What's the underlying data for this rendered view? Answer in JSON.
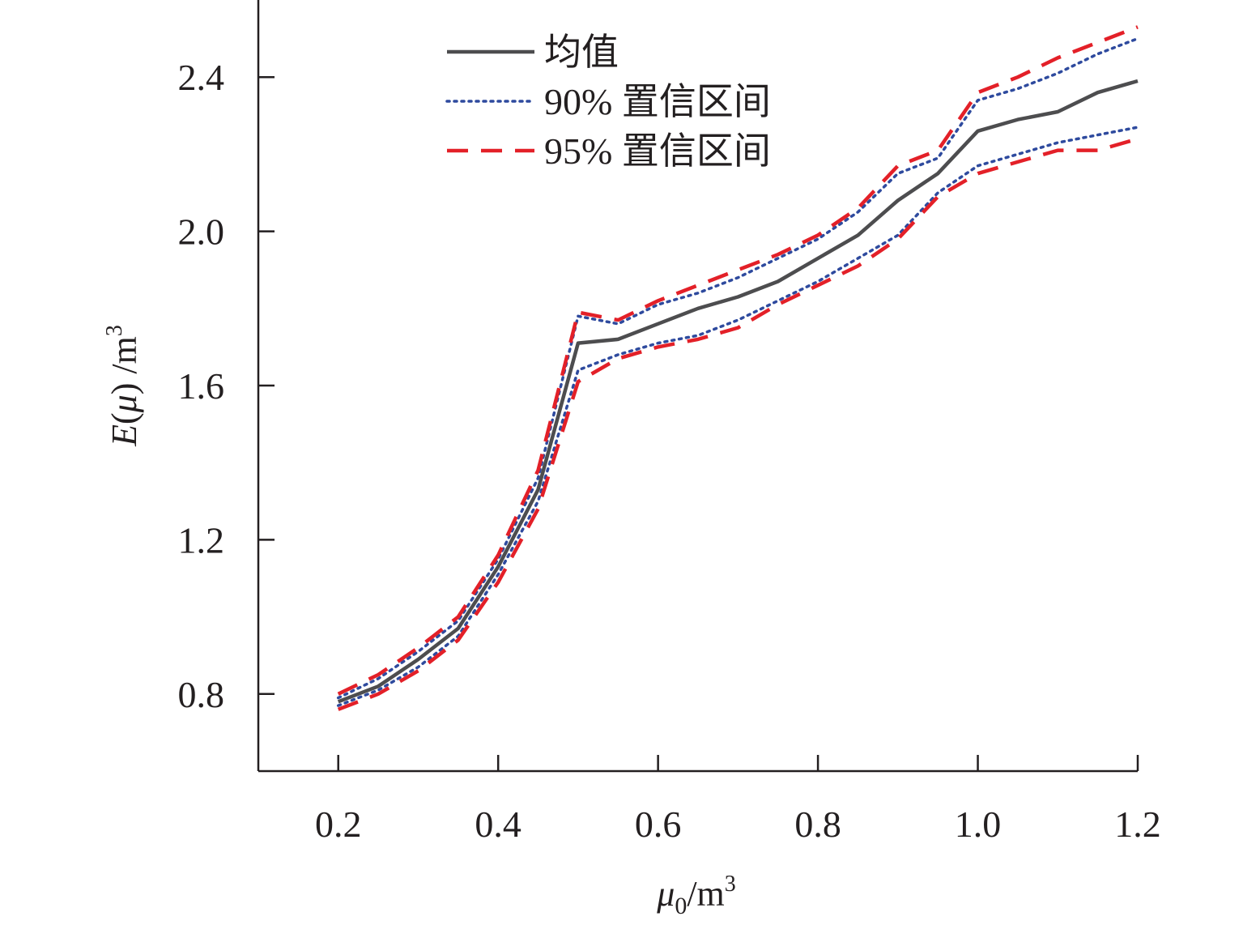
{
  "chart_data": {
    "type": "line",
    "x": [
      0.2,
      0.25,
      0.3,
      0.35,
      0.4,
      0.45,
      0.5,
      0.55,
      0.6,
      0.65,
      0.7,
      0.75,
      0.8,
      0.85,
      0.9,
      0.95,
      1.0,
      1.05,
      1.1,
      1.15,
      1.2
    ],
    "series": [
      {
        "name": "均值",
        "style": "solid",
        "color": "#4d4d4f",
        "values": [
          0.78,
          0.82,
          0.89,
          0.97,
          1.13,
          1.33,
          1.71,
          1.72,
          1.76,
          1.8,
          1.83,
          1.87,
          1.93,
          1.99,
          2.08,
          2.15,
          2.26,
          2.29,
          2.31,
          2.36,
          2.39
        ]
      },
      {
        "name": "90% 置信区间",
        "style": "dotted",
        "color": "#2e4a9e",
        "values": [
          0.79,
          0.84,
          0.91,
          0.99,
          1.15,
          1.36,
          1.78,
          1.76,
          1.81,
          1.84,
          1.88,
          1.93,
          1.98,
          2.05,
          2.15,
          2.19,
          2.34,
          2.37,
          2.41,
          2.46,
          2.5
        ]
      },
      {
        "name": "",
        "style": "dotted",
        "color": "#2e4a9e",
        "values": [
          0.77,
          0.81,
          0.87,
          0.95,
          1.11,
          1.3,
          1.64,
          1.68,
          1.71,
          1.73,
          1.77,
          1.82,
          1.87,
          1.93,
          1.99,
          2.1,
          2.17,
          2.2,
          2.23,
          2.25,
          2.27
        ]
      },
      {
        "name": "95% 置信区间",
        "style": "dashed",
        "color": "#e32028",
        "values": [
          0.8,
          0.85,
          0.92,
          1.0,
          1.16,
          1.38,
          1.79,
          1.77,
          1.82,
          1.86,
          1.9,
          1.94,
          1.99,
          2.06,
          2.17,
          2.21,
          2.36,
          2.4,
          2.45,
          2.49,
          2.53
        ]
      },
      {
        "name": "",
        "style": "dashed",
        "color": "#e32028",
        "values": [
          0.76,
          0.8,
          0.86,
          0.94,
          1.09,
          1.28,
          1.61,
          1.67,
          1.7,
          1.72,
          1.75,
          1.81,
          1.86,
          1.91,
          1.98,
          2.09,
          2.15,
          2.18,
          2.21,
          2.21,
          2.24
        ]
      }
    ],
    "x_ticks": [
      "0.2",
      "0.4",
      "0.6",
      "0.8",
      "1.0",
      "1.2"
    ],
    "y_ticks": [
      "0.8",
      "1.2",
      "1.6",
      "2.0",
      "2.4"
    ],
    "xlim": [
      0.1,
      1.2
    ],
    "ylim": [
      0.6,
      2.6
    ],
    "xlabel": "μ0/m³",
    "ylabel": "E(μ) /m³",
    "grid": false,
    "legend": "top-left"
  }
}
